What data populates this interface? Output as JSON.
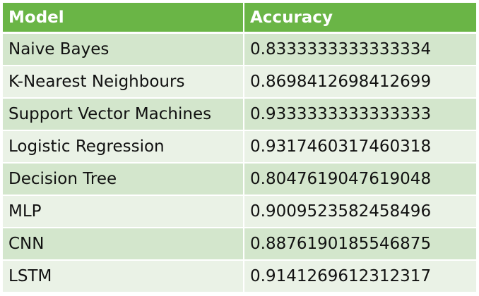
{
  "table": {
    "header": {
      "model": "Model",
      "accuracy": "Accuracy"
    },
    "rows": [
      {
        "model": "Naive Bayes",
        "accuracy": "0.8333333333333334"
      },
      {
        "model": "K-Nearest Neighbours",
        "accuracy": "0.8698412698412699"
      },
      {
        "model": "Support Vector Machines",
        "accuracy": "0.9333333333333333"
      },
      {
        "model": "Logistic Regression",
        "accuracy": "0.9317460317460318"
      },
      {
        "model": "Decision Tree",
        "accuracy": "0.8047619047619048"
      },
      {
        "model": "MLP",
        "accuracy": "0.9009523582458496"
      },
      {
        "model": "CNN",
        "accuracy": "0.8876190185546875"
      },
      {
        "model": "LSTM",
        "accuracy": "0.9141269612312317"
      }
    ]
  },
  "colors": {
    "header_bg": "#6ab546",
    "header_text": "#ffffff",
    "row_odd_bg": "#d3e6cc",
    "row_even_bg": "#eaf2e6",
    "text": "#111111"
  }
}
